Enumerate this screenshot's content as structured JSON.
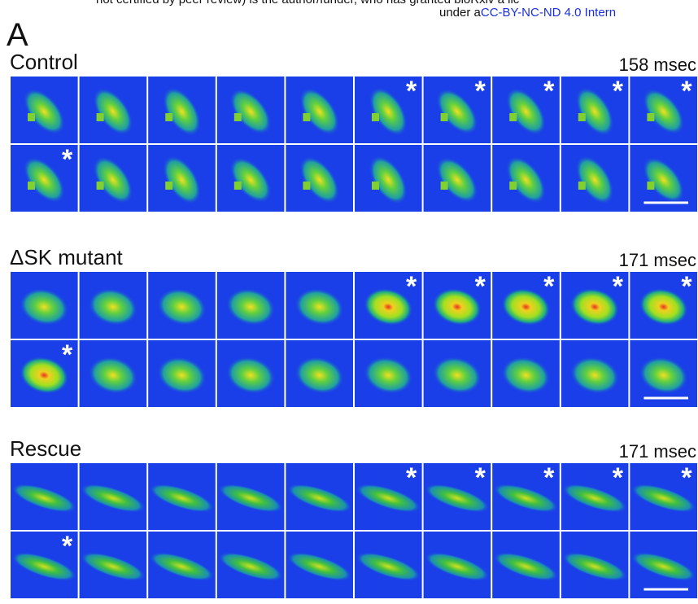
{
  "header": {
    "line1": "not certified by peer review) is the author/funder, who has granted bioRxiv a lic",
    "line2_prefix": "under a",
    "line2_link": "CC-BY-NC-ND 4.0 Intern"
  },
  "figure_label": "A",
  "panels": [
    {
      "title": "Control",
      "time": "158 msec",
      "rows": [
        [
          null,
          null,
          null,
          null,
          null,
          "*",
          "*",
          "*",
          "*",
          "*"
        ],
        [
          "*",
          null,
          null,
          null,
          null,
          null,
          null,
          null,
          null,
          null
        ]
      ]
    },
    {
      "title": "ΔSK mutant",
      "time": "171 msec",
      "rows": [
        [
          null,
          null,
          null,
          null,
          null,
          "*",
          "*",
          "*",
          "*",
          "*"
        ],
        [
          "*",
          null,
          null,
          null,
          null,
          null,
          null,
          null,
          null,
          null
        ]
      ]
    },
    {
      "title": "Rescue",
      "time": "171 msec",
      "rows": [
        [
          null,
          null,
          null,
          null,
          null,
          "*",
          "*",
          "*",
          "*",
          "*"
        ],
        [
          "*",
          null,
          null,
          null,
          null,
          null,
          null,
          null,
          null,
          null
        ]
      ]
    }
  ]
}
